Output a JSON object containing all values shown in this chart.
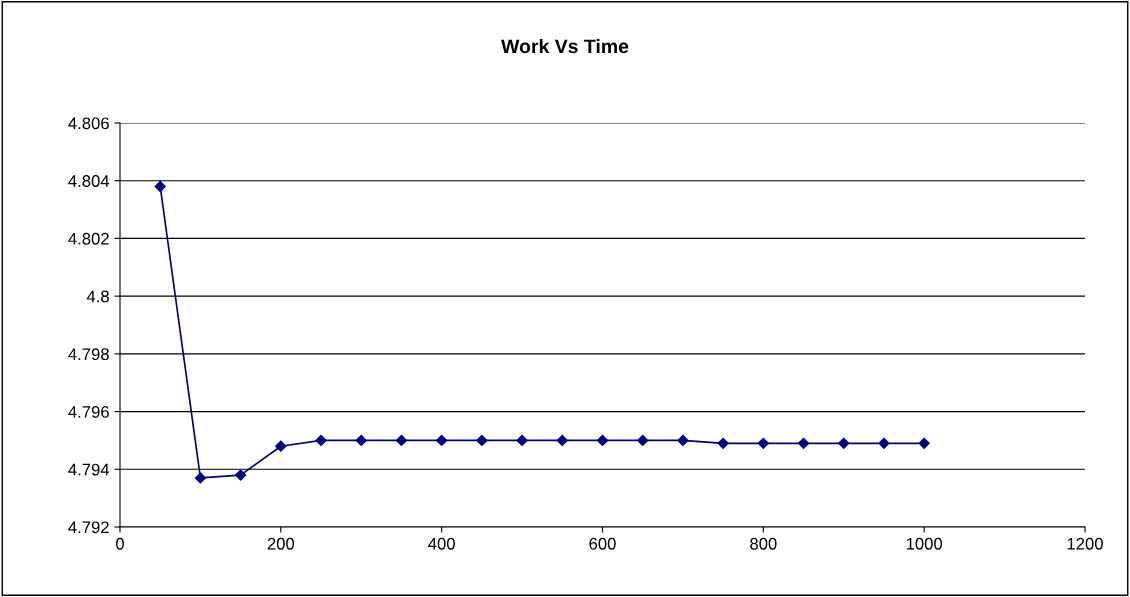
{
  "chart_data": {
    "type": "line",
    "title": "Work Vs Time",
    "x": [
      50,
      100,
      150,
      200,
      250,
      300,
      350,
      400,
      450,
      500,
      550,
      600,
      650,
      700,
      750,
      800,
      850,
      900,
      950,
      1000
    ],
    "series": [
      {
        "color": "#000080",
        "values": [
          4.8038,
          4.7937,
          4.7938,
          4.7948,
          4.795,
          4.795,
          4.795,
          4.795,
          4.795,
          4.795,
          4.795,
          4.795,
          4.795,
          4.795,
          4.7949,
          4.7949,
          4.7949,
          4.7949,
          4.7949,
          4.7949
        ]
      }
    ],
    "xlim": [
      0,
      1200
    ],
    "xticks": [
      0,
      200,
      400,
      600,
      800,
      1000,
      1200
    ],
    "ylim": [
      4.792,
      4.806
    ],
    "yticks": [
      {
        "value": 4.792,
        "label": "4.792"
      },
      {
        "value": 4.794,
        "label": "4.794"
      },
      {
        "value": 4.796,
        "label": "4.796"
      },
      {
        "value": 4.798,
        "label": "4.798"
      },
      {
        "value": 4.8,
        "label": "4.8"
      },
      {
        "value": 4.802,
        "label": "4.802"
      },
      {
        "value": 4.804,
        "label": "4.804"
      },
      {
        "value": 4.806,
        "label": "4.806"
      }
    ],
    "grid": "y",
    "legend": false,
    "marker": "diamond",
    "line_style": "solid"
  }
}
